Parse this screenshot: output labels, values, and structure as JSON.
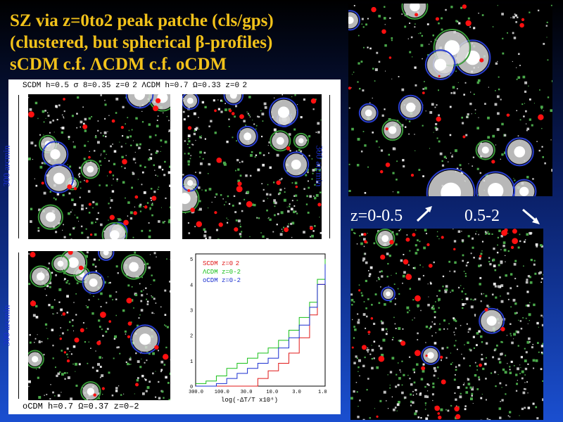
{
  "title": {
    "line1": "SZ via z=0to2 peak patche (cls/gps)",
    "line2": "(clustered, but spherical β-profiles)",
    "line3": " sCDM c.f. ΛCDM c.f. oCDM"
  },
  "panels": {
    "top_caption": "SCDM h=0.5 σ 8=0.35 z=0  2  ΛCDM h=0.7 Ω=0.33 z=0  2",
    "bottom_caption": "oCDM h=0.7 Ω=0.37 z=0–2",
    "scale_label": "300 arcmin"
  },
  "redshift_label": {
    "low": "z=0-0.5",
    "high": "0.5-2"
  },
  "colors": {
    "title": "#f2c21a",
    "scdm": "#e01818",
    "lcdm": "#18c018",
    "ocdm": "#1a2fd0"
  },
  "chart_data": {
    "type": "line",
    "xlabel": "log(-ΔT/T x10⁶)",
    "xticks": [
      "300.0",
      "100.0",
      "30.0",
      "10.0",
      "3.0",
      "1.0"
    ],
    "yticks": [
      "0",
      "1",
      "2",
      "3",
      "4",
      "5"
    ],
    "legend_placement": "top-left",
    "series": [
      {
        "name": "SCDM z=0  2",
        "color": "#e01818",
        "values": [
          0.0,
          0.0,
          0.0,
          0.0,
          0.0,
          0.0,
          0.3,
          0.6,
          0.9,
          1.3,
          1.9,
          2.8,
          4.0,
          4.9
        ]
      },
      {
        "name": "ΛCDM z=0-2",
        "color": "#18c018",
        "values": [
          0.1,
          0.2,
          0.4,
          0.7,
          0.9,
          1.1,
          1.3,
          1.5,
          1.8,
          2.2,
          2.7,
          3.3,
          4.2,
          5.0
        ]
      },
      {
        "name": "oCDM z=0-2",
        "color": "#1a2fd0",
        "values": [
          0.0,
          0.0,
          0.1,
          0.3,
          0.5,
          0.7,
          0.9,
          1.1,
          1.5,
          1.9,
          2.4,
          3.1,
          4.0,
          4.8
        ]
      }
    ],
    "x": [
      2.5,
      2.3,
      2.1,
      1.9,
      1.7,
      1.5,
      1.3,
      1.1,
      0.9,
      0.7,
      0.5,
      0.3,
      0.15,
      0.0
    ]
  }
}
